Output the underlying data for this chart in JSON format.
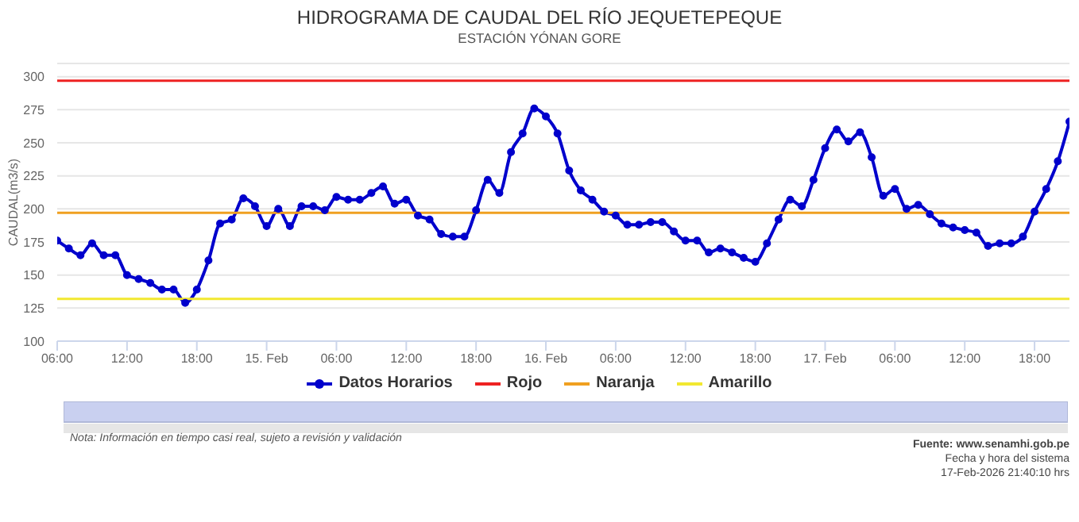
{
  "chart_data": {
    "type": "line",
    "title": "HIDROGRAMA DE CAUDAL DEL RÍO JEQUETEPEQUE",
    "subtitle": "ESTACIÓN YÓNAN GORE",
    "ylabel": "CAUDAL(m3/s)",
    "x": [
      "2026-02-14T06:00",
      "2026-02-14T07:00",
      "2026-02-14T08:00",
      "2026-02-14T09:00",
      "2026-02-14T10:00",
      "2026-02-14T11:00",
      "2026-02-14T12:00",
      "2026-02-14T13:00",
      "2026-02-14T14:00",
      "2026-02-14T15:00",
      "2026-02-14T16:00",
      "2026-02-14T17:00",
      "2026-02-14T18:00",
      "2026-02-14T19:00",
      "2026-02-14T20:00",
      "2026-02-14T21:00",
      "2026-02-14T22:00",
      "2026-02-14T23:00",
      "2026-02-15T00:00",
      "2026-02-15T01:00",
      "2026-02-15T02:00",
      "2026-02-15T03:00",
      "2026-02-15T04:00",
      "2026-02-15T05:00",
      "2026-02-15T06:00",
      "2026-02-15T07:00",
      "2026-02-15T08:00",
      "2026-02-15T09:00",
      "2026-02-15T10:00",
      "2026-02-15T11:00",
      "2026-02-15T12:00",
      "2026-02-15T13:00",
      "2026-02-15T14:00",
      "2026-02-15T15:00",
      "2026-02-15T16:00",
      "2026-02-15T17:00",
      "2026-02-15T18:00",
      "2026-02-15T19:00",
      "2026-02-15T20:00",
      "2026-02-15T21:00",
      "2026-02-15T22:00",
      "2026-02-15T23:00",
      "2026-02-16T00:00",
      "2026-02-16T01:00",
      "2026-02-16T02:00",
      "2026-02-16T03:00",
      "2026-02-16T04:00",
      "2026-02-16T05:00",
      "2026-02-16T06:00",
      "2026-02-16T07:00",
      "2026-02-16T08:00",
      "2026-02-16T09:00",
      "2026-02-16T10:00",
      "2026-02-16T11:00",
      "2026-02-16T12:00",
      "2026-02-16T13:00",
      "2026-02-16T14:00",
      "2026-02-16T15:00",
      "2026-02-16T16:00",
      "2026-02-16T17:00",
      "2026-02-16T18:00",
      "2026-02-16T19:00",
      "2026-02-16T20:00",
      "2026-02-16T21:00",
      "2026-02-16T22:00",
      "2026-02-16T23:00",
      "2026-02-17T00:00",
      "2026-02-17T01:00",
      "2026-02-17T02:00",
      "2026-02-17T03:00",
      "2026-02-17T04:00",
      "2026-02-17T05:00",
      "2026-02-17T06:00",
      "2026-02-17T07:00",
      "2026-02-17T08:00",
      "2026-02-17T09:00",
      "2026-02-17T10:00",
      "2026-02-17T11:00",
      "2026-02-17T12:00",
      "2026-02-17T13:00",
      "2026-02-17T14:00",
      "2026-02-17T15:00",
      "2026-02-17T16:00",
      "2026-02-17T17:00",
      "2026-02-17T18:00",
      "2026-02-17T19:00",
      "2026-02-17T20:00",
      "2026-02-17T21:00"
    ],
    "series": [
      {
        "name": "Datos Horarios",
        "color": "#0000cc",
        "marker": "circle",
        "values": [
          176,
          170,
          165,
          174,
          165,
          165,
          150,
          147,
          144,
          139,
          139,
          129,
          139,
          161,
          189,
          192,
          208,
          202,
          187,
          200,
          187,
          202,
          202,
          199,
          209,
          207,
          207,
          212,
          217,
          204,
          207,
          195,
          192,
          181,
          179,
          179,
          199,
          222,
          212,
          243,
          257,
          276,
          270,
          257,
          229,
          214,
          207,
          198,
          195,
          188,
          188,
          190,
          190,
          183,
          176,
          176,
          167,
          170,
          167,
          163,
          160,
          174,
          192,
          207,
          202,
          222,
          246,
          260,
          251,
          258,
          239,
          210,
          215,
          200,
          203,
          196,
          189,
          186,
          184,
          182,
          172,
          174,
          174,
          179,
          198,
          215,
          236,
          266
        ]
      },
      {
        "name": "Rojo",
        "color": "#ee2222",
        "marker": "none",
        "x": [
          "2026-02-14T06:00",
          "2026-02-17T21:00"
        ],
        "values": [
          297,
          297
        ]
      },
      {
        "name": "Naranja",
        "color": "#f0a020",
        "marker": "none",
        "x": [
          "2026-02-14T06:00",
          "2026-02-17T21:00"
        ],
        "values": [
          197,
          197
        ]
      },
      {
        "name": "Amarillo",
        "color": "#f2e830",
        "marker": "none",
        "x": [
          "2026-02-14T06:00",
          "2026-02-17T21:00"
        ],
        "values": [
          132,
          132
        ]
      }
    ],
    "xlim": [
      "2026-02-14T06:00",
      "2026-02-17T21:00"
    ],
    "xticks": [
      {
        "value": "2026-02-14T06:00",
        "label": "06:00"
      },
      {
        "value": "2026-02-14T12:00",
        "label": "12:00"
      },
      {
        "value": "2026-02-14T18:00",
        "label": "18:00"
      },
      {
        "value": "2026-02-15T00:00",
        "label": "15. Feb"
      },
      {
        "value": "2026-02-15T06:00",
        "label": "06:00"
      },
      {
        "value": "2026-02-15T12:00",
        "label": "12:00"
      },
      {
        "value": "2026-02-15T18:00",
        "label": "18:00"
      },
      {
        "value": "2026-02-16T00:00",
        "label": "16. Feb"
      },
      {
        "value": "2026-02-16T06:00",
        "label": "06:00"
      },
      {
        "value": "2026-02-16T12:00",
        "label": "12:00"
      },
      {
        "value": "2026-02-16T18:00",
        "label": "18:00"
      },
      {
        "value": "2026-02-17T00:00",
        "label": "17. Feb"
      },
      {
        "value": "2026-02-17T06:00",
        "label": "06:00"
      },
      {
        "value": "2026-02-17T12:00",
        "label": "12:00"
      },
      {
        "value": "2026-02-17T18:00",
        "label": "18:00"
      }
    ],
    "ylim": [
      100,
      310
    ],
    "yticks": [
      100,
      125,
      150,
      175,
      200,
      225,
      250,
      275,
      300
    ],
    "grid": "y",
    "legend": "bottom",
    "line_style": "solid",
    "annotations": [
      "Nota: Información en tiempo casi real, sujeto a revisión y validación",
      "Fuente: www.senamhi.gob.pe",
      "Fecha y hora del sistema",
      "17-Feb-2026 21:40:10 hrs"
    ]
  }
}
